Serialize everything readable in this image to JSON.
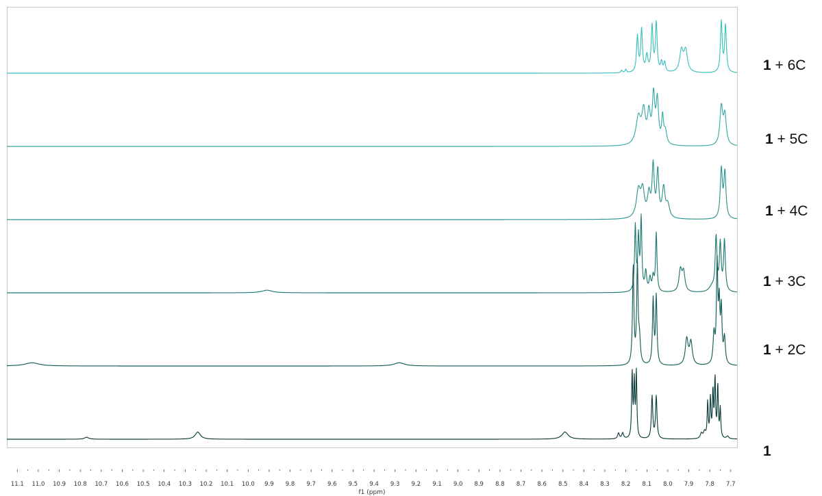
{
  "chart_data": {
    "type": "line",
    "title": "",
    "xlabel": "f1 (ppm)",
    "ylabel": "",
    "xlim": [
      11.15,
      7.67
    ],
    "x_reversed": true,
    "grid": false,
    "legend": "right",
    "x_ticks": [
      "11.1",
      "11.0",
      "10.9",
      "10.8",
      "10.7",
      "10.6",
      "10.5",
      "10.4",
      "10.3",
      "10.2",
      "10.1",
      "10.0",
      "9.9",
      "9.8",
      "9.7",
      "9.6",
      "9.5",
      "9.4",
      "9.3",
      "9.2",
      "9.1",
      "9.0",
      "8.9",
      "8.8",
      "8.7",
      "8.6",
      "8.5",
      "8.4",
      "8.3",
      "8.2",
      "8.1",
      "8.0",
      "7.9",
      "7.8",
      "7.7"
    ],
    "series": [
      {
        "name": "1 + 6C",
        "label_bold": "1",
        "label_rest": " + 6C",
        "color": "#3dbfbf",
        "peaks": [
          {
            "ppm": 8.22,
            "height": 0.04,
            "width": 0.004
          },
          {
            "ppm": 8.2,
            "height": 0.05,
            "width": 0.004
          },
          {
            "ppm": 8.145,
            "height": 0.55,
            "width": 0.005
          },
          {
            "ppm": 8.125,
            "height": 0.65,
            "width": 0.005
          },
          {
            "ppm": 8.1,
            "height": 0.25,
            "width": 0.006
          },
          {
            "ppm": 8.075,
            "height": 0.7,
            "width": 0.005
          },
          {
            "ppm": 8.055,
            "height": 0.75,
            "width": 0.005
          },
          {
            "ppm": 8.03,
            "height": 0.15,
            "width": 0.005
          },
          {
            "ppm": 8.015,
            "height": 0.15,
            "width": 0.005
          },
          {
            "ppm": 7.935,
            "height": 0.33,
            "width": 0.01
          },
          {
            "ppm": 7.915,
            "height": 0.33,
            "width": 0.01
          },
          {
            "ppm": 7.745,
            "height": 0.78,
            "width": 0.005
          },
          {
            "ppm": 7.725,
            "height": 0.72,
            "width": 0.005
          }
        ]
      },
      {
        "name": "1 + 5C",
        "label_bold": "1",
        "label_rest": " + 5C",
        "color": "#36aaa7",
        "peaks": [
          {
            "ppm": 8.14,
            "height": 0.42,
            "width": 0.014
          },
          {
            "ppm": 8.115,
            "height": 0.48,
            "width": 0.01
          },
          {
            "ppm": 8.09,
            "height": 0.45,
            "width": 0.008
          },
          {
            "ppm": 8.068,
            "height": 0.72,
            "width": 0.007
          },
          {
            "ppm": 8.05,
            "height": 0.66,
            "width": 0.007
          },
          {
            "ppm": 8.025,
            "height": 0.4,
            "width": 0.005
          },
          {
            "ppm": 8.012,
            "height": 0.2,
            "width": 0.008
          },
          {
            "ppm": 7.745,
            "height": 0.58,
            "width": 0.008
          },
          {
            "ppm": 7.728,
            "height": 0.45,
            "width": 0.008
          }
        ]
      },
      {
        "name": "1 + 4C",
        "label_bold": "1",
        "label_rest": " + 4C",
        "color": "#2c938e",
        "peaks": [
          {
            "ppm": 8.14,
            "height": 0.42,
            "width": 0.012
          },
          {
            "ppm": 8.12,
            "height": 0.4,
            "width": 0.01
          },
          {
            "ppm": 8.09,
            "height": 0.35,
            "width": 0.008
          },
          {
            "ppm": 8.07,
            "height": 0.78,
            "width": 0.006
          },
          {
            "ppm": 8.048,
            "height": 0.7,
            "width": 0.006
          },
          {
            "ppm": 8.02,
            "height": 0.45,
            "width": 0.008
          },
          {
            "ppm": 8.0,
            "height": 0.2,
            "width": 0.01
          },
          {
            "ppm": 7.745,
            "height": 0.75,
            "width": 0.006
          },
          {
            "ppm": 7.728,
            "height": 0.7,
            "width": 0.006
          }
        ]
      },
      {
        "name": "1 + 3C",
        "label_bold": "1",
        "label_rest": " + 3C",
        "color": "#1f7a73",
        "peaks": [
          {
            "ppm": 9.91,
            "height": 0.04,
            "width": 0.03
          },
          {
            "ppm": 8.155,
            "height": 1.0,
            "width": 0.004
          },
          {
            "ppm": 8.14,
            "height": 0.8,
            "width": 0.004
          },
          {
            "ppm": 8.127,
            "height": 1.1,
            "width": 0.004
          },
          {
            "ppm": 8.105,
            "height": 0.3,
            "width": 0.005
          },
          {
            "ppm": 8.085,
            "height": 0.2,
            "width": 0.005
          },
          {
            "ppm": 8.07,
            "height": 0.22,
            "width": 0.005
          },
          {
            "ppm": 8.055,
            "height": 0.9,
            "width": 0.004
          },
          {
            "ppm": 7.94,
            "height": 0.33,
            "width": 0.008
          },
          {
            "ppm": 7.925,
            "height": 0.3,
            "width": 0.008
          },
          {
            "ppm": 7.79,
            "height": 0.08,
            "width": 0.015
          },
          {
            "ppm": 7.77,
            "height": 0.82,
            "width": 0.005
          },
          {
            "ppm": 7.75,
            "height": 0.72,
            "width": 0.005
          },
          {
            "ppm": 7.73,
            "height": 0.78,
            "width": 0.005
          }
        ]
      },
      {
        "name": "1 + 2C",
        "label_bold": "1",
        "label_rest": " + 2C",
        "color": "#145e57",
        "peaks": [
          {
            "ppm": 11.03,
            "height": 0.05,
            "width": 0.04
          },
          {
            "ppm": 9.28,
            "height": 0.05,
            "width": 0.03
          },
          {
            "ppm": 8.165,
            "height": 1.5,
            "width": 0.004
          },
          {
            "ppm": 8.145,
            "height": 1.5,
            "width": 0.004
          },
          {
            "ppm": 8.135,
            "height": 0.35,
            "width": 0.005
          },
          {
            "ppm": 8.07,
            "height": 1.0,
            "width": 0.004
          },
          {
            "ppm": 8.055,
            "height": 1.05,
            "width": 0.004
          },
          {
            "ppm": 7.91,
            "height": 0.4,
            "width": 0.008
          },
          {
            "ppm": 7.89,
            "height": 0.35,
            "width": 0.008
          },
          {
            "ppm": 7.78,
            "height": 0.45,
            "width": 0.005
          },
          {
            "ppm": 7.765,
            "height": 1.5,
            "width": 0.004
          },
          {
            "ppm": 7.755,
            "height": 0.85,
            "width": 0.004
          },
          {
            "ppm": 7.745,
            "height": 0.8,
            "width": 0.004
          },
          {
            "ppm": 7.73,
            "height": 0.4,
            "width": 0.005
          }
        ]
      },
      {
        "name": "1",
        "label_bold": "1",
        "label_rest": "",
        "color": "#0b3d38",
        "peaks": [
          {
            "ppm": 10.77,
            "height": 0.03,
            "width": 0.012
          },
          {
            "ppm": 10.24,
            "height": 0.11,
            "width": 0.015
          },
          {
            "ppm": 8.49,
            "height": 0.11,
            "width": 0.018
          },
          {
            "ppm": 8.235,
            "height": 0.09,
            "width": 0.005
          },
          {
            "ppm": 8.215,
            "height": 0.09,
            "width": 0.005
          },
          {
            "ppm": 8.17,
            "height": 1.0,
            "width": 0.003
          },
          {
            "ppm": 8.16,
            "height": 0.85,
            "width": 0.003
          },
          {
            "ppm": 8.15,
            "height": 1.0,
            "width": 0.003
          },
          {
            "ppm": 8.075,
            "height": 0.65,
            "width": 0.004
          },
          {
            "ppm": 8.055,
            "height": 0.65,
            "width": 0.004
          },
          {
            "ppm": 7.84,
            "height": 0.08,
            "width": 0.006
          },
          {
            "ppm": 7.825,
            "height": 0.1,
            "width": 0.006
          },
          {
            "ppm": 7.81,
            "height": 0.55,
            "width": 0.003
          },
          {
            "ppm": 7.797,
            "height": 0.6,
            "width": 0.003
          },
          {
            "ppm": 7.785,
            "height": 0.7,
            "width": 0.003
          },
          {
            "ppm": 7.775,
            "height": 0.9,
            "width": 0.003
          },
          {
            "ppm": 7.762,
            "height": 0.8,
            "width": 0.003
          },
          {
            "ppm": 7.75,
            "height": 0.45,
            "width": 0.003
          },
          {
            "ppm": 7.715,
            "height": 0.04,
            "width": 0.006
          }
        ]
      }
    ]
  }
}
